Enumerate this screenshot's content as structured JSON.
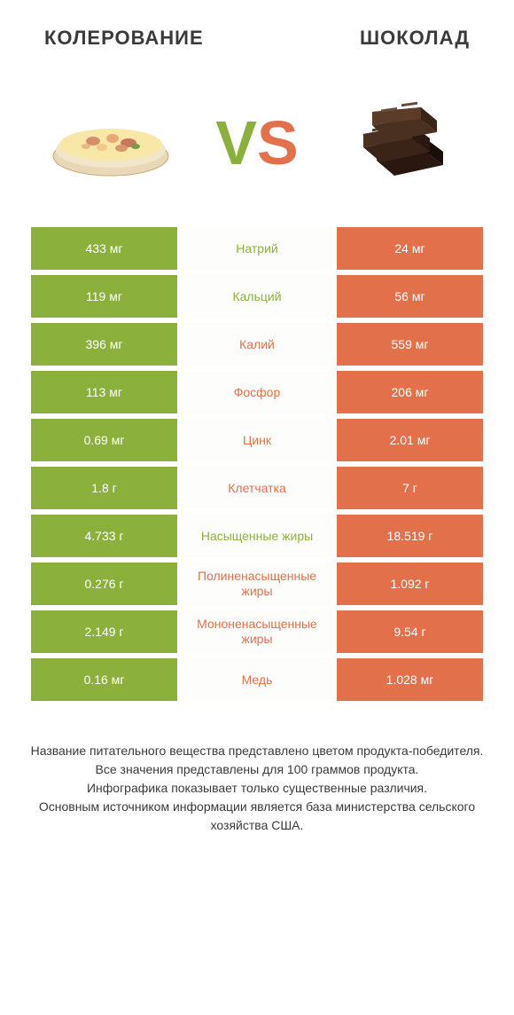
{
  "header": {
    "left_title": "КОЛЕРОВАНИЕ",
    "right_title": "ШОКОЛАД"
  },
  "vs": {
    "v": "V",
    "s": "S"
  },
  "colors": {
    "green": "#8bb13c",
    "orange": "#e2704a",
    "background": "#ffffff",
    "text": "#3a3a3a",
    "middle_bg": "#fdfdfb"
  },
  "rows": [
    {
      "left": "433 мг",
      "label": "Натрий",
      "right": "24 мг",
      "winner": "left"
    },
    {
      "left": "119 мг",
      "label": "Кальций",
      "right": "56 мг",
      "winner": "left"
    },
    {
      "left": "396 мг",
      "label": "Калий",
      "right": "559 мг",
      "winner": "right"
    },
    {
      "left": "113 мг",
      "label": "Фосфор",
      "right": "206 мг",
      "winner": "right"
    },
    {
      "left": "0.69 мг",
      "label": "Цинк",
      "right": "2.01 мг",
      "winner": "right"
    },
    {
      "left": "1.8 г",
      "label": "Клетчатка",
      "right": "7 г",
      "winner": "right"
    },
    {
      "left": "4.733 г",
      "label": "Насыщенные жиры",
      "right": "18.519 г",
      "winner": "left"
    },
    {
      "left": "0.276 г",
      "label": "Полиненасыщенные жиры",
      "right": "1.092 г",
      "winner": "right"
    },
    {
      "left": "2.149 г",
      "label": "Мононенасыщенные жиры",
      "right": "9.54 г",
      "winner": "right"
    },
    {
      "left": "0.16 мг",
      "label": "Медь",
      "right": "1.028 мг",
      "winner": "right"
    }
  ],
  "footer": "Название питательного вещества представлено цветом продукта-победителя.\nВсе значения представлены для 100 граммов продукта.\nИнфографика показывает только существенные различия.\nОсновным источником информации является база министерства сельского хозяйства США."
}
